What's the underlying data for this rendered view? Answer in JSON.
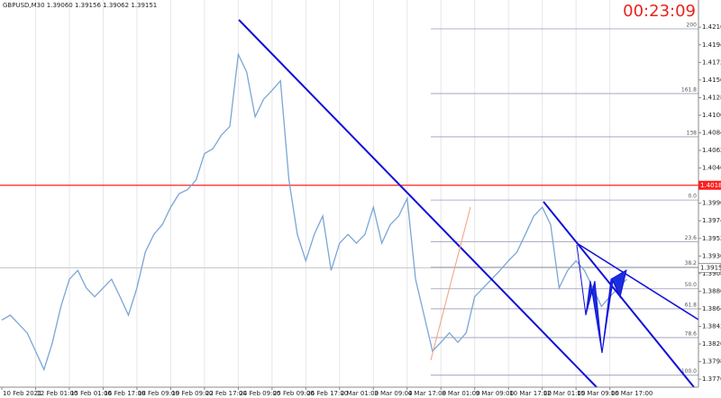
{
  "chart_data": {
    "type": "line",
    "title": "GBPUSD,M30  1.39060 1.39156 1.39062 1.39151",
    "timer": "00:23:09",
    "categories": [
      "10 Feb 2021",
      null,
      null,
      null,
      "12 Feb 01:00",
      null,
      null,
      null,
      "15 Feb 01:00",
      null,
      null,
      null,
      "16 Feb 17:00",
      null,
      null,
      null,
      "18 Feb 09:00",
      null,
      null,
      null,
      "19 Feb 09:00",
      null,
      null,
      null,
      "22 Feb 17:00",
      null,
      null,
      null,
      "24 Feb 09:00",
      null,
      null,
      null,
      "25 Feb 09:00",
      null,
      null,
      null,
      "26 Feb 17:00",
      null,
      null,
      null,
      "2 Mar 01:00",
      null,
      null,
      null,
      "3 Mar 09:00",
      null,
      null,
      null,
      "4 Mar 17:00",
      null,
      null,
      null,
      "8 Mar 01:00",
      null,
      null,
      null,
      "9 Mar 09:00",
      null,
      null,
      null,
      "10 Mar 17:00",
      null,
      null,
      null,
      "12 Mar 01:00",
      null,
      null,
      null,
      "15 Mar 09:00",
      null,
      null,
      null,
      "16 Mar 17:00",
      null,
      null
    ],
    "series": [
      {
        "name": "GBPUSD",
        "color": "#7aa6d6",
        "values": [
          1.385,
          1.3856,
          1.3845,
          1.3834,
          1.3811,
          1.3788,
          1.3822,
          1.3867,
          1.3901,
          1.3912,
          1.389,
          1.3879,
          1.389,
          1.3901,
          1.3879,
          1.3856,
          1.389,
          1.3935,
          1.3957,
          1.3969,
          1.3991,
          1.4008,
          1.4013,
          1.4025,
          1.4058,
          1.4064,
          1.4081,
          1.4092,
          1.4182,
          1.416,
          1.4104,
          1.4126,
          1.4137,
          1.4149,
          1.4025,
          1.3957,
          1.3924,
          1.3957,
          1.398,
          1.3912,
          1.3946,
          1.3957,
          1.3946,
          1.3957,
          1.3991,
          1.3946,
          1.3969,
          1.398,
          1.4002,
          1.3901,
          1.3856,
          1.3811,
          1.3822,
          1.3834,
          1.3822,
          1.3834,
          1.3879,
          1.389,
          1.3901,
          1.3912,
          1.3924,
          1.3935,
          1.3957,
          1.398,
          1.3991,
          1.3969,
          1.389,
          1.3912,
          1.3924,
          1.3912,
          1.389,
          1.3867,
          1.3879,
          1.389,
          1.3901
        ]
      }
    ],
    "ylim": [
      1.3766,
      1.425
    ],
    "yticks": [
      {
        "value": 1.4216,
        "label": "1.42160"
      },
      {
        "value": 1.4194,
        "label": "1.41940"
      },
      {
        "value": 1.4172,
        "label": "1.41720"
      },
      {
        "value": 1.415,
        "label": "1.41500"
      },
      {
        "value": 1.4128,
        "label": "1.41280"
      },
      {
        "value": 1.4106,
        "label": "1.41060"
      },
      {
        "value": 1.4084,
        "label": "1.40840"
      },
      {
        "value": 1.4062,
        "label": "1.40620"
      },
      {
        "value": 1.404,
        "label": "1.40400"
      },
      {
        "value": 1.4018,
        "label": "1.40180"
      },
      {
        "value": 1.3996,
        "label": "1.39960"
      },
      {
        "value": 1.3974,
        "label": "1.39740"
      },
      {
        "value": 1.3952,
        "label": "1.39520"
      },
      {
        "value": 1.393,
        "label": "1.39300"
      },
      {
        "value": 1.3908,
        "label": "1.39080"
      },
      {
        "value": 1.3886,
        "label": "1.38860"
      },
      {
        "value": 1.3864,
        "label": "1.38640"
      },
      {
        "value": 1.3842,
        "label": "1.38420"
      },
      {
        "value": 1.382,
        "label": "1.38200"
      },
      {
        "value": 1.3798,
        "label": "1.37980"
      },
      {
        "value": 1.3776,
        "label": "1.37760"
      }
    ],
    "grid": true,
    "horizontal_line": {
      "value": 1.40184,
      "color": "#ff2020"
    },
    "current_price": {
      "value": 1.39151,
      "color": "#c8c8c8"
    },
    "fib_levels": [
      {
        "label": "200",
        "value": 1.4214
      },
      {
        "label": "161.8",
        "value": 1.4133
      },
      {
        "label": "138",
        "value": 1.4079
      },
      {
        "label": "0.0",
        "value": 1.4
      },
      {
        "label": "23.6",
        "value": 1.3948
      },
      {
        "label": "38.2",
        "value": 1.3916
      },
      {
        "label": "50.0",
        "value": 1.3889
      },
      {
        "label": "61.8",
        "value": 1.3864
      },
      {
        "label": "78.6",
        "value": 1.3828
      },
      {
        "label": "100.0",
        "value": 1.3781
      }
    ]
  }
}
